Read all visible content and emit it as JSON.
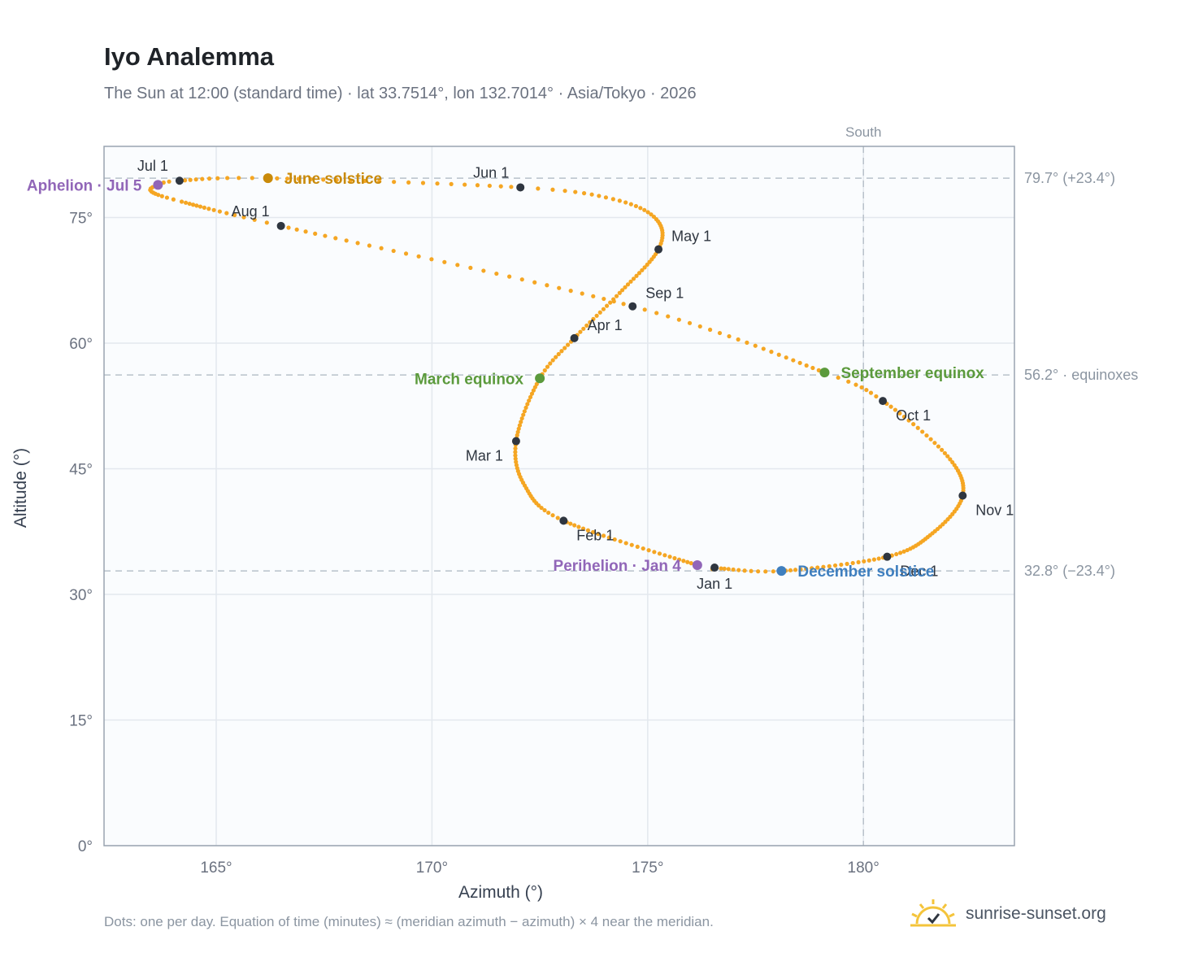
{
  "header": {
    "title": "Iyo Analemma",
    "subtitle": "The Sun at 12:00 (standard time) · lat 33.7514°, lon 132.7014° · Asia/Tokyo · 2026"
  },
  "footer": {
    "note": "Dots: one per day. Equation of time (minutes) ≈ (meridian azimuth − azimuth) × 4 near the meridian.",
    "brand": "sunrise-sunset.org",
    "brand_icon": "sun-logo-icon"
  },
  "colors": {
    "curve": "#f5a623",
    "month_dot": "#2f3640",
    "solstice_june": "#c98a0a",
    "solstice_december": "#3f7fbf",
    "equinox": "#5b9a3c",
    "apsis": "#9166b8",
    "reference_line": "#b8c1ca",
    "plot_bg": "#fafcfe",
    "grid": "#e3e8ee",
    "frame": "#9aa4b0"
  },
  "chart_data": {
    "type": "scatter",
    "xlabel": "Azimuth (°)",
    "ylabel": "Altitude (°)",
    "xlim": [
      162.4,
      183.5
    ],
    "ylim": [
      0,
      83.5
    ],
    "x_ticks": [
      165,
      170,
      175,
      180
    ],
    "y_ticks": [
      0,
      15,
      30,
      45,
      60,
      75
    ],
    "x_tick_suffix": "°",
    "y_tick_suffix": "°",
    "grid": true,
    "meridian": {
      "azimuth": 180,
      "label": "South"
    },
    "reference_lines": [
      {
        "altitude": 79.7,
        "label": "79.7° (+23.4°)"
      },
      {
        "altitude": 56.2,
        "label": "56.2° · equinoxes"
      },
      {
        "altitude": 32.8,
        "label": "32.8° (−23.4°)"
      }
    ],
    "daily_points_note": "one point per day, interpolated between the anchor dates below",
    "curve_anchors": [
      {
        "day": 1,
        "az": 176.55,
        "alt": 33.2
      },
      {
        "day": 4,
        "az": 176.15,
        "alt": 33.5
      },
      {
        "day": 32,
        "az": 173.05,
        "alt": 38.8
      },
      {
        "day": 46,
        "az": 172.15,
        "alt": 43.0
      },
      {
        "day": 60,
        "az": 171.95,
        "alt": 48.3
      },
      {
        "day": 79,
        "az": 172.5,
        "alt": 55.8
      },
      {
        "day": 91,
        "az": 173.3,
        "alt": 60.6
      },
      {
        "day": 105,
        "az": 174.35,
        "alt": 66.0
      },
      {
        "day": 121,
        "az": 175.25,
        "alt": 71.2
      },
      {
        "day": 133,
        "az": 175.2,
        "alt": 74.8
      },
      {
        "day": 143,
        "az": 174.2,
        "alt": 77.2
      },
      {
        "day": 152,
        "az": 172.05,
        "alt": 78.6
      },
      {
        "day": 172,
        "az": 166.2,
        "alt": 79.7
      },
      {
        "day": 182,
        "az": 164.15,
        "alt": 79.4
      },
      {
        "day": 186,
        "az": 163.65,
        "alt": 78.9
      },
      {
        "day": 191,
        "az": 163.5,
        "alt": 78.1
      },
      {
        "day": 198,
        "az": 164.2,
        "alt": 76.9
      },
      {
        "day": 213,
        "az": 166.5,
        "alt": 74.0
      },
      {
        "day": 244,
        "az": 174.65,
        "alt": 64.4
      },
      {
        "day": 266,
        "az": 179.1,
        "alt": 56.5
      },
      {
        "day": 274,
        "az": 180.45,
        "alt": 53.1
      },
      {
        "day": 290,
        "az": 181.95,
        "alt": 46.5
      },
      {
        "day": 305,
        "az": 182.3,
        "alt": 41.8
      },
      {
        "day": 320,
        "az": 181.6,
        "alt": 37.3
      },
      {
        "day": 335,
        "az": 180.55,
        "alt": 34.5
      },
      {
        "day": 355,
        "az": 178.1,
        "alt": 32.8
      },
      {
        "day": 365,
        "az": 176.7,
        "alt": 33.1
      }
    ],
    "month_markers": [
      {
        "label": "Jan 1",
        "az": 176.55,
        "alt": 33.2,
        "pos": "below"
      },
      {
        "label": "Feb 1",
        "az": 173.05,
        "alt": 38.8,
        "pos": "below-right"
      },
      {
        "label": "Mar 1",
        "az": 171.95,
        "alt": 48.3,
        "pos": "left"
      },
      {
        "label": "Apr 1",
        "az": 173.3,
        "alt": 60.6,
        "pos": "above-right"
      },
      {
        "label": "May 1",
        "az": 175.25,
        "alt": 71.2,
        "pos": "above-right"
      },
      {
        "label": "Jun 1",
        "az": 172.05,
        "alt": 78.6,
        "pos": "above-left"
      },
      {
        "label": "Jul 1",
        "az": 164.15,
        "alt": 79.4,
        "pos": "above-left"
      },
      {
        "label": "Aug 1",
        "az": 166.5,
        "alt": 74.0,
        "pos": "above-left"
      },
      {
        "label": "Sep 1",
        "az": 174.65,
        "alt": 64.4,
        "pos": "above-right"
      },
      {
        "label": "Oct 1",
        "az": 180.45,
        "alt": 53.1,
        "pos": "below-right"
      },
      {
        "label": "Nov 1",
        "az": 182.3,
        "alt": 41.8,
        "pos": "below-right"
      },
      {
        "label": "Dec 1",
        "az": 180.55,
        "alt": 34.5,
        "pos": "below-right"
      }
    ],
    "events": [
      {
        "label": "June solstice",
        "az": 166.2,
        "alt": 79.7,
        "color_key": "solstice_june",
        "pos": "right"
      },
      {
        "label": "December solstice",
        "az": 178.1,
        "alt": 32.8,
        "color_key": "solstice_december",
        "pos": "right"
      },
      {
        "label": "March equinox",
        "az": 172.5,
        "alt": 55.8,
        "color_key": "equinox",
        "pos": "left"
      },
      {
        "label": "September equinox",
        "az": 179.1,
        "alt": 56.5,
        "color_key": "equinox",
        "pos": "right"
      },
      {
        "label": "Aphelion · Jul 5",
        "az": 163.65,
        "alt": 78.9,
        "color_key": "apsis",
        "pos": "left"
      },
      {
        "label": "Perihelion · Jan 4",
        "az": 176.15,
        "alt": 33.5,
        "color_key": "apsis",
        "pos": "left"
      }
    ]
  }
}
